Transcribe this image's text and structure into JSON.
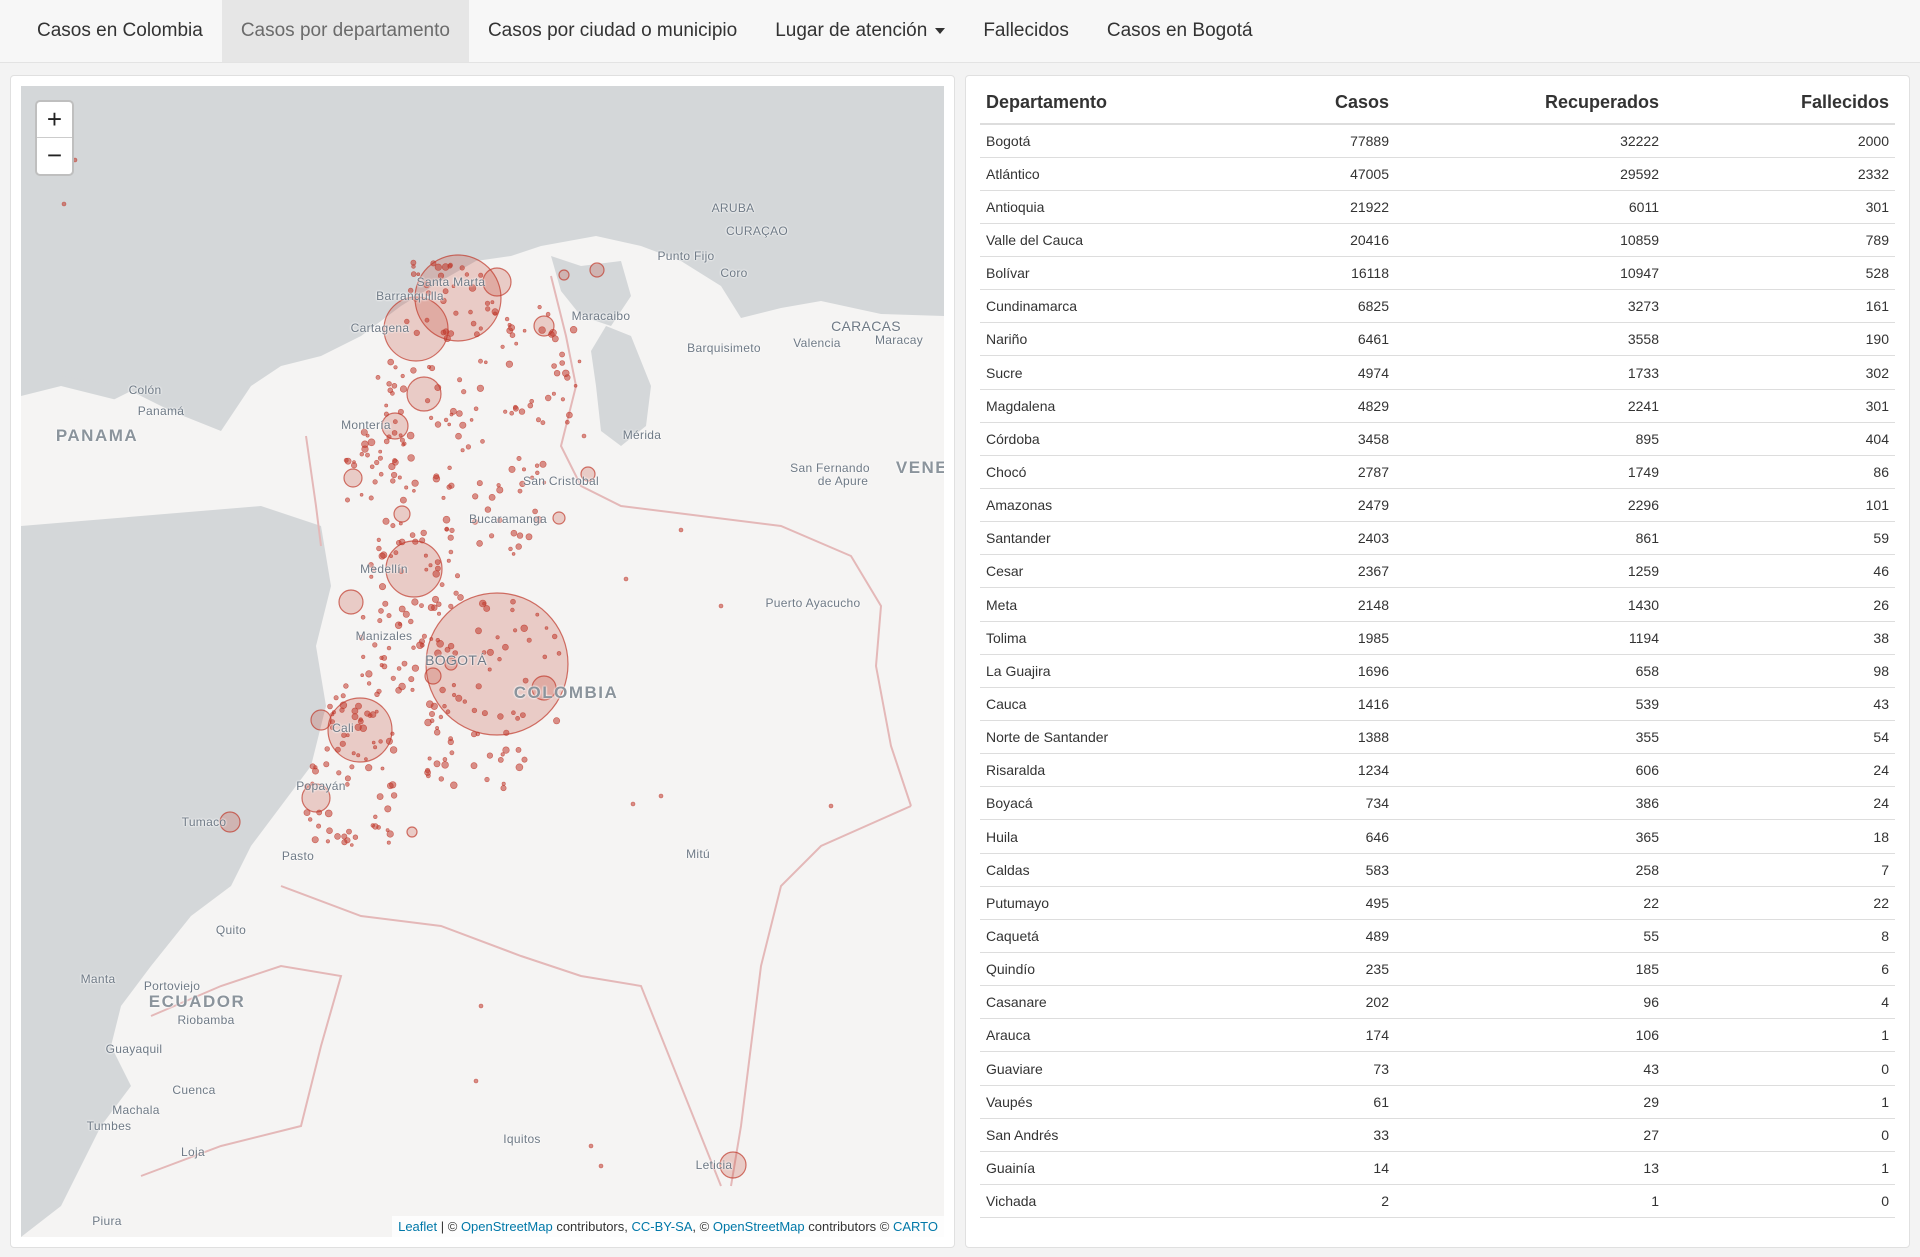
{
  "nav": {
    "items": [
      {
        "label": "Casos en Colombia",
        "active": false
      },
      {
        "label": "Casos por departamento",
        "active": true
      },
      {
        "label": "Casos por ciudad o municipio",
        "active": false
      },
      {
        "label": "Lugar de atención",
        "active": false,
        "dropdown": true
      },
      {
        "label": "Fallecidos",
        "active": false
      },
      {
        "label": "Casos en Bogotá",
        "active": false
      }
    ]
  },
  "map": {
    "zoom_in": "+",
    "zoom_out": "−",
    "attribution": {
      "leaflet": "Leaflet",
      "sep1": " | © ",
      "osm1": "OpenStreetMap",
      "contrib1": " contributors, ",
      "ccbysa": "CC-BY-SA",
      "sep2": ", © ",
      "osm2": "OpenStreetMap",
      "contrib2": " contributors © ",
      "carto": "CARTO"
    },
    "labels": [
      {
        "text": "ARUBA",
        "type": "country-small"
      },
      {
        "text": "CURAÇAO",
        "type": "country-small"
      },
      {
        "text": "Punto Fijo",
        "type": "city"
      },
      {
        "text": "Coro",
        "type": "city"
      },
      {
        "text": "Santa Marta",
        "type": "city"
      },
      {
        "text": "Barranquilla",
        "type": "city"
      },
      {
        "text": "Cartagena",
        "type": "city"
      },
      {
        "text": "Maracaibo",
        "type": "city"
      },
      {
        "text": "CARACAS",
        "type": "capital"
      },
      {
        "text": "Maracay",
        "type": "city"
      },
      {
        "text": "Valencia",
        "type": "city"
      },
      {
        "text": "Barquisimeto",
        "type": "city"
      },
      {
        "text": "Colón",
        "type": "city"
      },
      {
        "text": "Panamá",
        "type": "city"
      },
      {
        "text": "PANAMA",
        "type": "country"
      },
      {
        "text": "Montería",
        "type": "city"
      },
      {
        "text": "Mérida",
        "type": "city"
      },
      {
        "text": "San Fernando",
        "type": "city"
      },
      {
        "text": "de Apure",
        "type": "city"
      },
      {
        "text": "VENE",
        "type": "country"
      },
      {
        "text": "San Cristobal",
        "type": "city"
      },
      {
        "text": "Bucaramanga",
        "type": "city"
      },
      {
        "text": "Medellín",
        "type": "city"
      },
      {
        "text": "Puerto Ayacucho",
        "type": "city"
      },
      {
        "text": "Manizales",
        "type": "city"
      },
      {
        "text": "BOGOTÁ",
        "type": "capital"
      },
      {
        "text": "COLOMBIA",
        "type": "country"
      },
      {
        "text": "Cali",
        "type": "city"
      },
      {
        "text": "Popayán",
        "type": "city"
      },
      {
        "text": "Tumaco",
        "type": "city"
      },
      {
        "text": "Pasto",
        "type": "city"
      },
      {
        "text": "Mitú",
        "type": "city"
      },
      {
        "text": "Quito",
        "type": "city"
      },
      {
        "text": "Manta",
        "type": "city"
      },
      {
        "text": "Portoviejo",
        "type": "city"
      },
      {
        "text": "ECUADOR",
        "type": "country"
      },
      {
        "text": "Riobamba",
        "type": "city"
      },
      {
        "text": "Guayaquil",
        "type": "city"
      },
      {
        "text": "Cuenca",
        "type": "city"
      },
      {
        "text": "Machala",
        "type": "city"
      },
      {
        "text": "Tumbes",
        "type": "city"
      },
      {
        "text": "Loja",
        "type": "city"
      },
      {
        "text": "Iquitos",
        "type": "city"
      },
      {
        "text": "Leticia",
        "type": "city"
      },
      {
        "text": "Piura",
        "type": "city"
      }
    ],
    "marker_color": "#c0392b"
  },
  "table": {
    "headers": [
      "Departamento",
      "Casos",
      "Recuperados",
      "Fallecidos"
    ],
    "rows": [
      [
        "Bogotá",
        "77889",
        "32222",
        "2000"
      ],
      [
        "Atlántico",
        "47005",
        "29592",
        "2332"
      ],
      [
        "Antioquia",
        "21922",
        "6011",
        "301"
      ],
      [
        "Valle del Cauca",
        "20416",
        "10859",
        "789"
      ],
      [
        "Bolívar",
        "16118",
        "10947",
        "528"
      ],
      [
        "Cundinamarca",
        "6825",
        "3273",
        "161"
      ],
      [
        "Nariño",
        "6461",
        "3558",
        "190"
      ],
      [
        "Sucre",
        "4974",
        "1733",
        "302"
      ],
      [
        "Magdalena",
        "4829",
        "2241",
        "301"
      ],
      [
        "Córdoba",
        "3458",
        "895",
        "404"
      ],
      [
        "Chocó",
        "2787",
        "1749",
        "86"
      ],
      [
        "Amazonas",
        "2479",
        "2296",
        "101"
      ],
      [
        "Santander",
        "2403",
        "861",
        "59"
      ],
      [
        "Cesar",
        "2367",
        "1259",
        "46"
      ],
      [
        "Meta",
        "2148",
        "1430",
        "26"
      ],
      [
        "Tolima",
        "1985",
        "1194",
        "38"
      ],
      [
        "La Guajira",
        "1696",
        "658",
        "98"
      ],
      [
        "Cauca",
        "1416",
        "539",
        "43"
      ],
      [
        "Norte de Santander",
        "1388",
        "355",
        "54"
      ],
      [
        "Risaralda",
        "1234",
        "606",
        "24"
      ],
      [
        "Boyacá",
        "734",
        "386",
        "24"
      ],
      [
        "Huila",
        "646",
        "365",
        "18"
      ],
      [
        "Caldas",
        "583",
        "258",
        "7"
      ],
      [
        "Putumayo",
        "495",
        "22",
        "22"
      ],
      [
        "Caquetá",
        "489",
        "55",
        "8"
      ],
      [
        "Quindío",
        "235",
        "185",
        "6"
      ],
      [
        "Casanare",
        "202",
        "96",
        "4"
      ],
      [
        "Arauca",
        "174",
        "106",
        "1"
      ],
      [
        "Guaviare",
        "73",
        "43",
        "0"
      ],
      [
        "Vaupés",
        "61",
        "29",
        "1"
      ],
      [
        "San Andrés",
        "33",
        "27",
        "0"
      ],
      [
        "Guainía",
        "14",
        "13",
        "1"
      ],
      [
        "Vichada",
        "2",
        "1",
        "0"
      ]
    ]
  }
}
